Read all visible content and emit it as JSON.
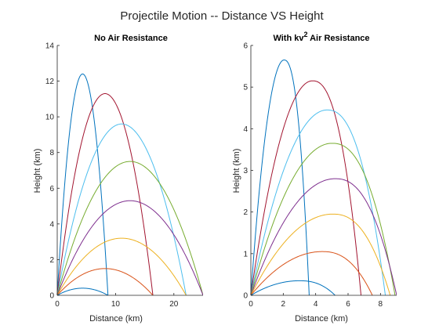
{
  "figure": {
    "title": "Projectile Motion -- Distance VS Height"
  },
  "chart_data": [
    {
      "type": "line",
      "title": "No Air Resistance",
      "xlabel": "Distance (km)",
      "ylabel": "Height (km)",
      "xlim": [
        0,
        25
      ],
      "ylim": [
        0,
        14
      ],
      "xticks": [
        0,
        10,
        20
      ],
      "yticks": [
        0,
        2,
        4,
        6,
        8,
        10,
        12,
        14
      ],
      "grid": false,
      "series": [
        {
          "color": "#0072BD",
          "model": "parabola",
          "range": 8.7,
          "apex_x": 4.35,
          "max_height": 12.4
        },
        {
          "color": "#A2142F",
          "model": "parabola",
          "range": 16.4,
          "apex_x": 8.2,
          "max_height": 11.3
        },
        {
          "color": "#4DBEEE",
          "model": "parabola",
          "range": 22.1,
          "apex_x": 11.05,
          "max_height": 9.6
        },
        {
          "color": "#77AC30",
          "model": "parabola",
          "range": 25.0,
          "apex_x": 12.5,
          "max_height": 7.5
        },
        {
          "color": "#7E2F8E",
          "model": "parabola",
          "range": 25.0,
          "apex_x": 12.5,
          "max_height": 5.3
        },
        {
          "color": "#EDB120",
          "model": "parabola",
          "range": 22.1,
          "apex_x": 11.05,
          "max_height": 3.2
        },
        {
          "color": "#D95319",
          "model": "parabola",
          "range": 16.4,
          "apex_x": 8.2,
          "max_height": 1.5
        },
        {
          "color": "#0072BD",
          "model": "parabola",
          "range": 8.7,
          "apex_x": 4.35,
          "max_height": 0.4
        }
      ]
    },
    {
      "type": "line",
      "title": "With kv",
      "title_sup": "2",
      "title_suffix": " Air Resistance",
      "xlabel": "Distance (km)",
      "ylabel": "Height (km)",
      "xlim": [
        0,
        9
      ],
      "ylim": [
        0,
        6
      ],
      "xticks": [
        0,
        2,
        4,
        6,
        8
      ],
      "yticks": [
        0,
        1,
        2,
        3,
        4,
        5,
        6
      ],
      "grid": false,
      "series": [
        {
          "color": "#0072BD",
          "model": "drag",
          "range": 3.6,
          "apex_x": 2.05,
          "max_height": 5.65
        },
        {
          "color": "#A2142F",
          "model": "drag",
          "range": 6.8,
          "apex_x": 3.8,
          "max_height": 5.15
        },
        {
          "color": "#4DBEEE",
          "model": "drag",
          "range": 8.3,
          "apex_x": 4.7,
          "max_height": 4.45
        },
        {
          "color": "#77AC30",
          "model": "drag",
          "range": 8.9,
          "apex_x": 5.0,
          "max_height": 3.65
        },
        {
          "color": "#7E2F8E",
          "model": "drag",
          "range": 9.0,
          "apex_x": 5.2,
          "max_height": 2.8
        },
        {
          "color": "#EDB120",
          "model": "drag",
          "range": 8.6,
          "apex_x": 5.05,
          "max_height": 1.95
        },
        {
          "color": "#D95319",
          "model": "drag",
          "range": 7.5,
          "apex_x": 4.4,
          "max_height": 1.05
        },
        {
          "color": "#0072BD",
          "model": "drag",
          "range": 5.2,
          "apex_x": 3.0,
          "max_height": 0.35
        }
      ]
    }
  ]
}
